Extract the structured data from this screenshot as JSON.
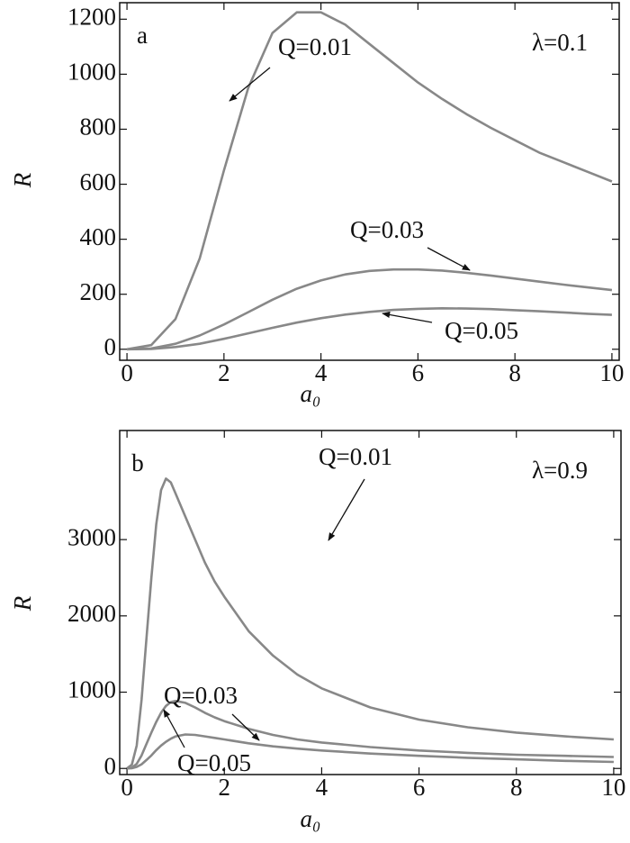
{
  "chart_data": [
    {
      "type": "line",
      "panel_label": "a",
      "annotation": "λ=0.1",
      "xlabel": "a₀",
      "ylabel": "R",
      "x": [
        0,
        0.5,
        1,
        1.5,
        2,
        2.5,
        3,
        3.5,
        4,
        4.5,
        5,
        5.5,
        6,
        6.5,
        7,
        7.5,
        8,
        8.5,
        9,
        9.5,
        10
      ],
      "series": [
        {
          "name": "Q=0.01",
          "color": "#888888",
          "values": [
            0,
            15,
            110,
            330,
            650,
            950,
            1150,
            1225,
            1225,
            1180,
            1110,
            1040,
            970,
            910,
            855,
            805,
            760,
            715,
            680,
            645,
            610
          ]
        },
        {
          "name": "Q=0.03",
          "color": "#888888",
          "values": [
            0,
            3,
            20,
            50,
            90,
            135,
            180,
            220,
            250,
            272,
            285,
            290,
            290,
            286,
            278,
            268,
            257,
            246,
            235,
            225,
            215
          ]
        },
        {
          "name": "Q=0.05",
          "color": "#888888",
          "values": [
            0,
            1,
            8,
            20,
            38,
            58,
            78,
            97,
            113,
            126,
            136,
            143,
            147,
            149,
            148,
            146,
            142,
            138,
            134,
            129,
            125
          ]
        }
      ],
      "xlim": [
        -0.15,
        10.15
      ],
      "ylim": [
        -40,
        1260
      ],
      "xticks": [
        0,
        2,
        4,
        6,
        8,
        10
      ],
      "yticks": [
        0,
        200,
        400,
        600,
        800,
        1000,
        1200
      ]
    },
    {
      "type": "line",
      "panel_label": "b",
      "annotation": "λ=0.9",
      "xlabel": "a₀",
      "ylabel": "R",
      "x": [
        0,
        0.1,
        0.2,
        0.3,
        0.4,
        0.5,
        0.6,
        0.7,
        0.8,
        0.9,
        1,
        1.2,
        1.4,
        1.6,
        1.8,
        2,
        2.5,
        3,
        3.5,
        4,
        5,
        6,
        7,
        8,
        9,
        10
      ],
      "series": [
        {
          "name": "Q=0.01",
          "color": "#888888",
          "values": [
            0,
            50,
            300,
            900,
            1700,
            2500,
            3200,
            3650,
            3800,
            3750,
            3600,
            3300,
            3000,
            2700,
            2450,
            2250,
            1800,
            1480,
            1230,
            1050,
            800,
            640,
            540,
            470,
            420,
            380
          ]
        },
        {
          "name": "Q=0.03",
          "color": "#888888",
          "values": [
            0,
            10,
            60,
            170,
            320,
            470,
            610,
            730,
            820,
            870,
            885,
            860,
            800,
            730,
            670,
            620,
            520,
            440,
            380,
            340,
            280,
            235,
            205,
            180,
            165,
            150
          ]
        },
        {
          "name": "Q=0.05",
          "color": "#888888",
          "values": [
            0,
            3,
            20,
            55,
            110,
            170,
            240,
            300,
            350,
            390,
            420,
            445,
            440,
            420,
            400,
            380,
            330,
            290,
            260,
            235,
            195,
            165,
            140,
            120,
            100,
            85
          ]
        }
      ],
      "xlim": [
        -0.15,
        10.15
      ],
      "ylim": [
        -80,
        4430
      ],
      "xticks": [
        0,
        2,
        4,
        6,
        8,
        10
      ],
      "yticks": [
        0,
        1000,
        2000,
        3000
      ]
    }
  ]
}
